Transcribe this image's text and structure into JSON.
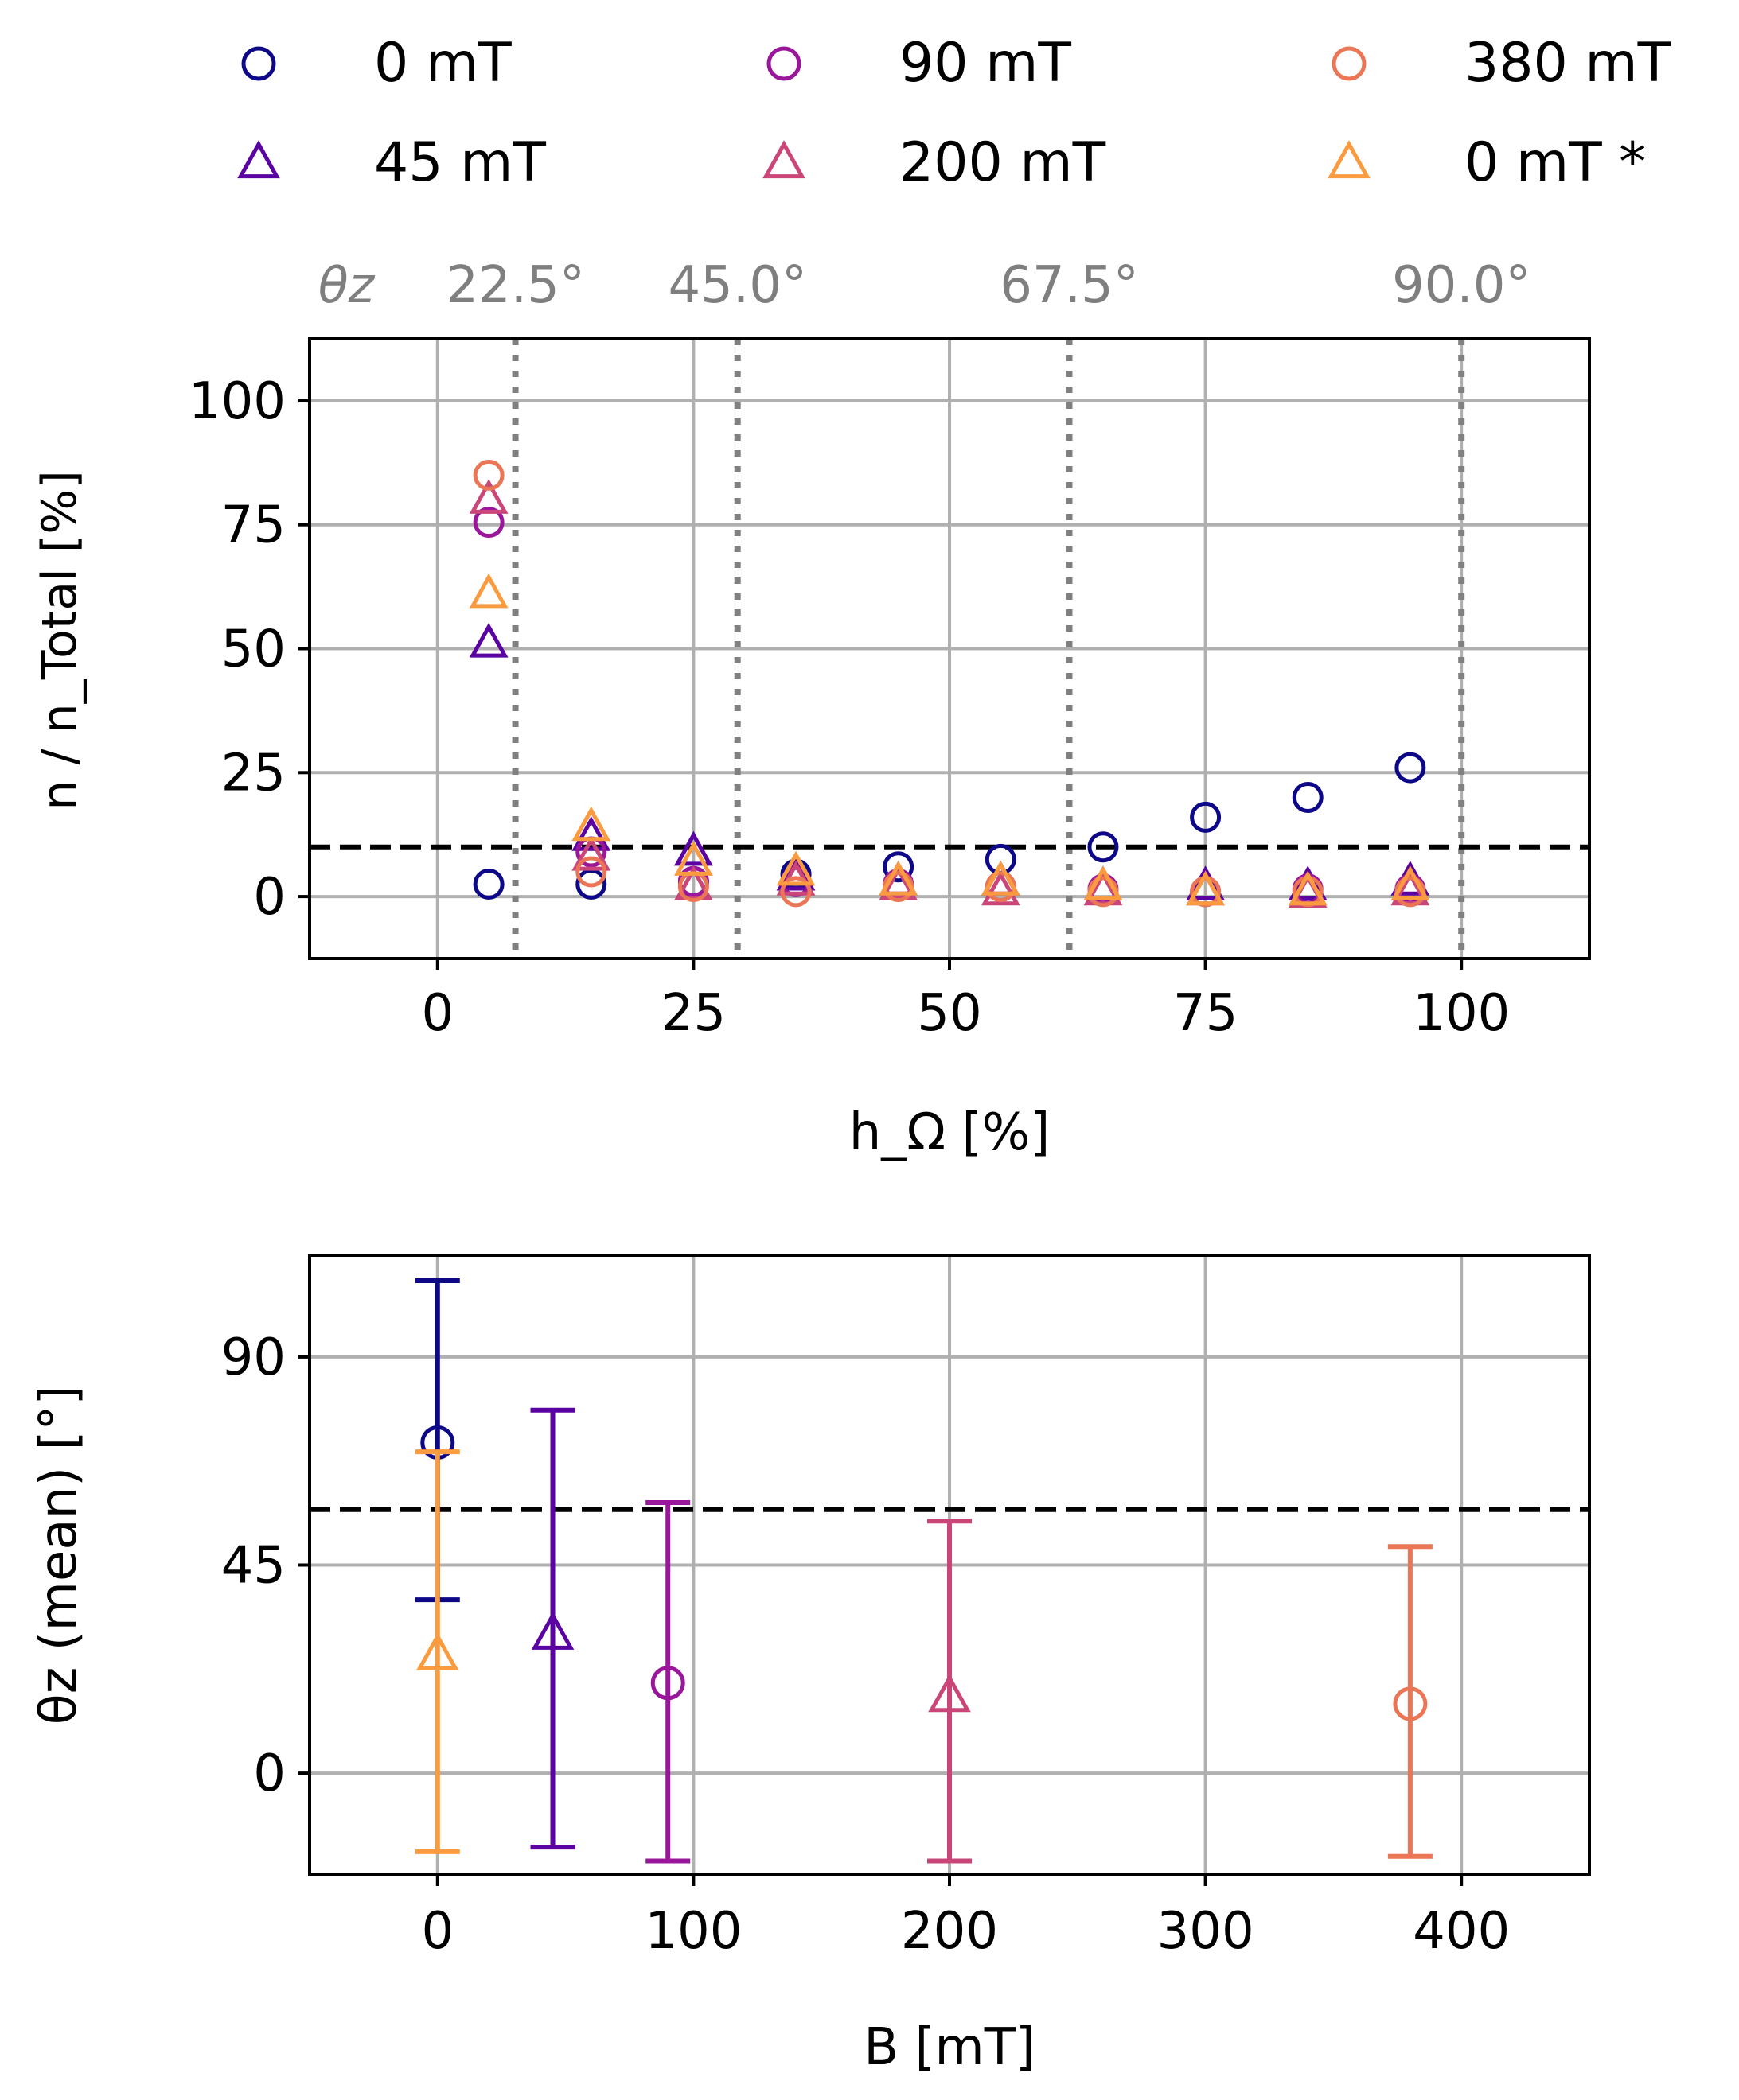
{
  "legend": {
    "entries": [
      {
        "label": "0 mT",
        "marker": "circle",
        "color": "#0d0887"
      },
      {
        "label": "45 mT",
        "marker": "triangle",
        "color": "#5b02a3"
      },
      {
        "label": "90 mT",
        "marker": "circle",
        "color": "#9a179b"
      },
      {
        "label": "200 mT",
        "marker": "triangle",
        "color": "#cb4678"
      },
      {
        "label": "380 mT",
        "marker": "circle",
        "color": "#eb7655"
      },
      {
        "label": "0 mT *",
        "marker": "triangle",
        "color": "#fb9b3f"
      }
    ]
  },
  "chart_data": [
    {
      "type": "scatter",
      "title": "",
      "xlabel": "h_Ω [%]",
      "ylabel": "n / n_Total [%]",
      "xlim": [
        -12.5,
        112.5
      ],
      "ylim": [
        -12.5,
        112.5
      ],
      "xticks": [
        0,
        25,
        50,
        75,
        100
      ],
      "yticks": [
        0,
        25,
        50,
        75,
        100
      ],
      "grid": true,
      "reference_line_y": 10,
      "top_axis": {
        "label": "θz",
        "ticks": [
          {
            "label": "22.5°",
            "x": 7.6
          },
          {
            "label": "45.0°",
            "x": 29.3
          },
          {
            "label": "67.5°",
            "x": 61.7
          },
          {
            "label": "90.0°",
            "x": 100
          }
        ]
      },
      "x": [
        5,
        15,
        25,
        35,
        45,
        55,
        65,
        75,
        85,
        95
      ],
      "series": [
        {
          "name": "0 mT",
          "marker": "circle",
          "color": "#0d0887",
          "values": [
            2.5,
            2.5,
            3,
            4.5,
            6,
            7.5,
            10,
            16,
            20,
            26
          ]
        },
        {
          "name": "45 mT",
          "marker": "triangle",
          "color": "#5b02a3",
          "values": [
            51,
            12,
            9,
            4,
            3,
            3,
            2,
            2,
            2,
            3
          ]
        },
        {
          "name": "90 mT",
          "marker": "circle",
          "color": "#9a179b",
          "values": [
            75.5,
            9,
            3,
            3,
            2.5,
            2,
            1.5,
            1,
            1.5,
            1.5
          ]
        },
        {
          "name": "200 mT",
          "marker": "triangle",
          "color": "#cb4678",
          "values": [
            80,
            8,
            2,
            3,
            2,
            1,
            1,
            1,
            0.5,
            1
          ]
        },
        {
          "name": "380 mT",
          "marker": "circle",
          "color": "#eb7655",
          "values": [
            85,
            5,
            2,
            1,
            2,
            2,
            1,
            1,
            1,
            1
          ]
        },
        {
          "name": "0 mT *",
          "marker": "triangle",
          "color": "#fb9b3f",
          "values": [
            61,
            14,
            7,
            5,
            3,
            3,
            2,
            1,
            1,
            2
          ]
        }
      ]
    },
    {
      "type": "errorbar",
      "title": "",
      "xlabel": "B [mT]",
      "ylabel": "θz (mean) [°]",
      "xlim": [
        -50,
        450
      ],
      "ylim": [
        -22,
        112
      ],
      "xticks": [
        0,
        100,
        200,
        300,
        400
      ],
      "yticks": [
        0,
        45,
        90
      ],
      "grid": true,
      "reference_line_y": 57,
      "points": [
        {
          "name": "0 mT",
          "x": 0,
          "y": 71.5,
          "yerr_low": 37.5,
          "yerr_high": 106.5,
          "marker": "circle",
          "color": "#0d0887"
        },
        {
          "name": "0 mT *",
          "x": 0,
          "y": 25.5,
          "yerr_low": -17,
          "yerr_high": 69.5,
          "marker": "triangle",
          "color": "#fb9b3f"
        },
        {
          "name": "45 mT",
          "x": 45,
          "y": 30,
          "yerr_low": -16,
          "yerr_high": 78.5,
          "marker": "triangle",
          "color": "#5b02a3"
        },
        {
          "name": "90 mT",
          "x": 90,
          "y": 19.5,
          "yerr_low": -19,
          "yerr_high": 58.5,
          "marker": "circle",
          "color": "#9a179b"
        },
        {
          "name": "200 mT",
          "x": 200,
          "y": 16.5,
          "yerr_low": -19,
          "yerr_high": 54.5,
          "marker": "triangle",
          "color": "#cb4678"
        },
        {
          "name": "380 mT",
          "x": 380,
          "y": 15,
          "yerr_low": -18,
          "yerr_high": 49,
          "marker": "circle",
          "color": "#eb7655"
        }
      ]
    }
  ]
}
